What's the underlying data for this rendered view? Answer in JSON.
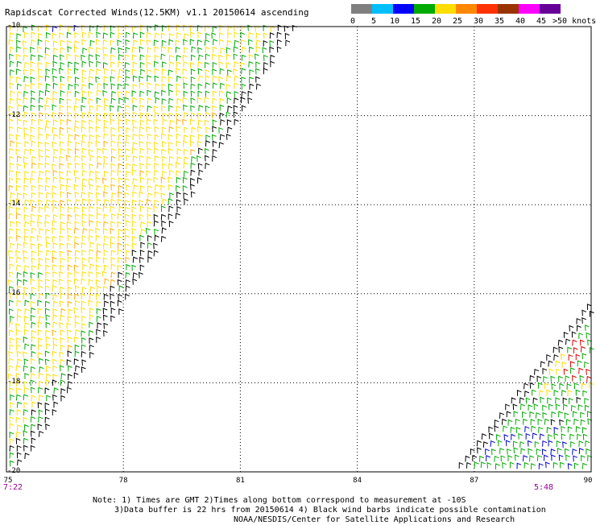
{
  "title": "Rapidscat Corrected Winds(12.5KM) v1.1 20150614 ascending",
  "legend": {
    "colors": [
      "#7f7f7f",
      "#00bfff",
      "#0000ff",
      "#00aa00",
      "#ffdd00",
      "#ff8800",
      "#ff3300",
      "#993300",
      "#ff00ff",
      "#660099"
    ],
    "labels": [
      "0",
      "5",
      "10",
      "15",
      "20",
      "25",
      "30",
      "35",
      "40",
      "45",
      ">50"
    ],
    "units": "knots"
  },
  "map": {
    "lat_labels": [
      "-10",
      "-12",
      "-14",
      "-16",
      "-18",
      "-20"
    ],
    "lon_labels": [
      "75",
      "78",
      "81",
      "84",
      "87",
      "90"
    ],
    "lat_range": [
      -20,
      -10
    ],
    "lon_range": [
      75,
      90
    ],
    "grid": "dotted",
    "swath_times": [
      "7:22",
      "5:48"
    ]
  },
  "notes": {
    "line1": "Note: 1) Times are GMT 2)Times along bottom correspond to measurement at -10S",
    "line2": "3)Data buffer is 22 hrs from 20150614 4) Black wind barbs indicate possible contamination",
    "line3": "NOAA/NESDIS/Center for Satellite Applications and Research"
  },
  "barb_colors": {
    "light": "#ffdd00",
    "moderate": "#ffaa00",
    "green": "#00aa00",
    "blue": "#0000cc",
    "red": "#dd0000",
    "contaminated": "#000000"
  }
}
